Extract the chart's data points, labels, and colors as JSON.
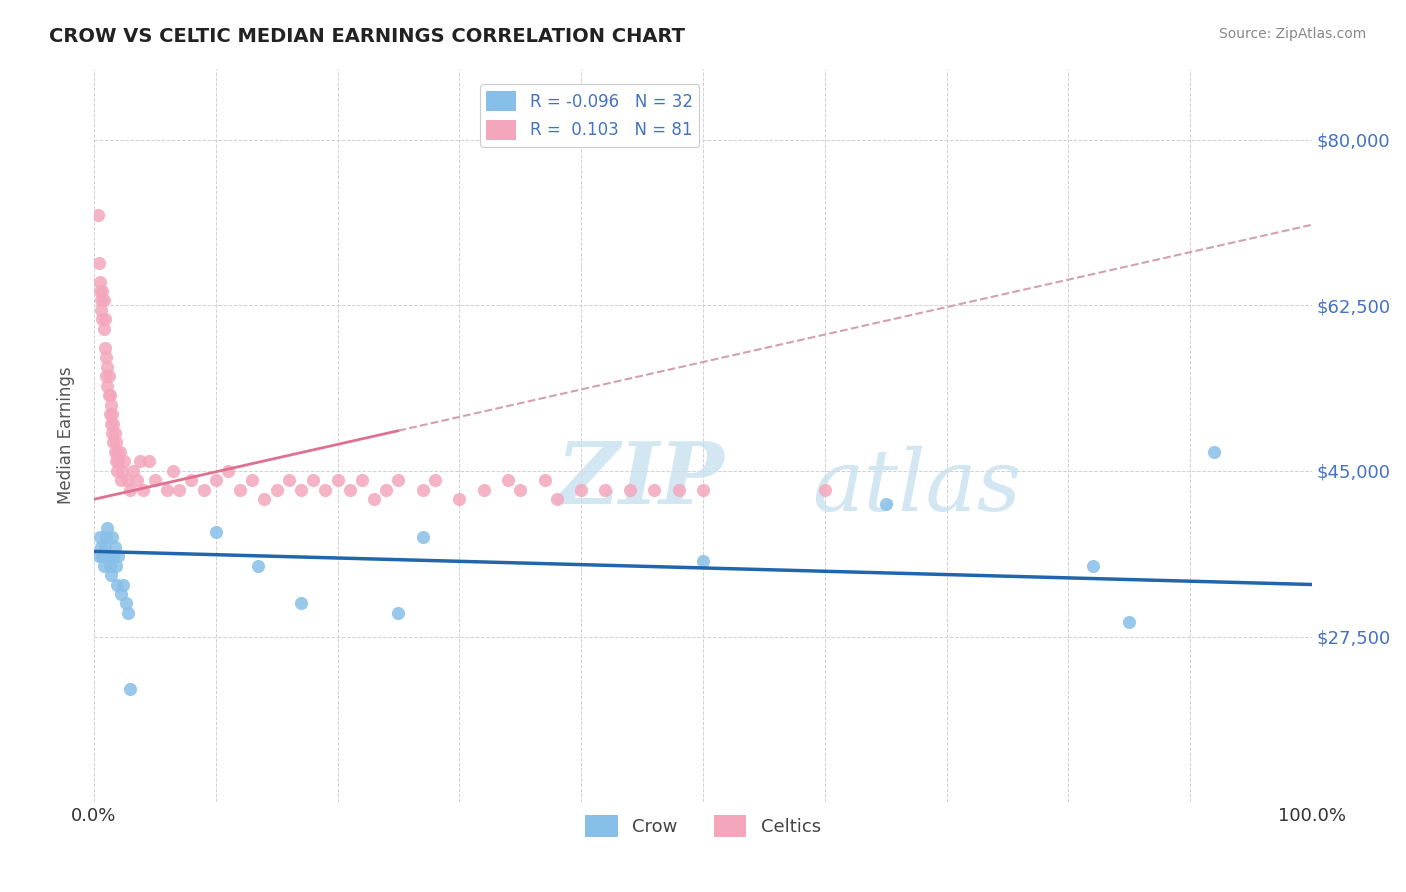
{
  "title": "CROW VS CELTIC MEDIAN EARNINGS CORRELATION CHART",
  "source": "Source: ZipAtlas.com",
  "ylabel": "Median Earnings",
  "xlim": [
    0.0,
    1.0
  ],
  "ylim": [
    10000,
    87500
  ],
  "yticks": [
    27500,
    45000,
    62500,
    80000
  ],
  "ytick_labels": [
    "$27,500",
    "$45,000",
    "$62,500",
    "$80,000"
  ],
  "crow_R": -0.096,
  "crow_N": 32,
  "celtics_R": 0.103,
  "celtics_N": 81,
  "crow_color": "#88bfe8",
  "celtics_color": "#f4a7bc",
  "crow_line_color": "#2166ac",
  "celtics_line_solid_color": "#e07090",
  "celtics_line_dash_color": "#d4a0b0",
  "watermark_zip": "ZIP",
  "watermark_atlas": "atlas",
  "crow_x": [
    0.004,
    0.005,
    0.006,
    0.007,
    0.008,
    0.009,
    0.01,
    0.011,
    0.012,
    0.013,
    0.014,
    0.015,
    0.016,
    0.017,
    0.018,
    0.019,
    0.02,
    0.022,
    0.024,
    0.026,
    0.028,
    0.03,
    0.1,
    0.135,
    0.17,
    0.25,
    0.27,
    0.5,
    0.65,
    0.82,
    0.85,
    0.92
  ],
  "crow_y": [
    36000,
    38000,
    37000,
    36000,
    35000,
    37000,
    38000,
    39000,
    36000,
    35000,
    34000,
    38000,
    36000,
    37000,
    35000,
    33000,
    36000,
    32000,
    33000,
    31000,
    30000,
    22000,
    38500,
    35000,
    31000,
    30000,
    38000,
    35500,
    41500,
    35000,
    29000,
    47000
  ],
  "celtics_x": [
    0.003,
    0.004,
    0.005,
    0.005,
    0.006,
    0.006,
    0.007,
    0.007,
    0.008,
    0.008,
    0.009,
    0.009,
    0.01,
    0.01,
    0.011,
    0.011,
    0.012,
    0.012,
    0.013,
    0.013,
    0.014,
    0.014,
    0.015,
    0.015,
    0.016,
    0.016,
    0.017,
    0.017,
    0.018,
    0.018,
    0.019,
    0.019,
    0.02,
    0.021,
    0.022,
    0.023,
    0.025,
    0.027,
    0.03,
    0.032,
    0.035,
    0.038,
    0.04,
    0.045,
    0.05,
    0.06,
    0.065,
    0.07,
    0.08,
    0.09,
    0.1,
    0.11,
    0.12,
    0.13,
    0.14,
    0.15,
    0.16,
    0.17,
    0.18,
    0.19,
    0.2,
    0.21,
    0.22,
    0.23,
    0.24,
    0.25,
    0.27,
    0.28,
    0.3,
    0.32,
    0.34,
    0.35,
    0.37,
    0.38,
    0.4,
    0.42,
    0.44,
    0.46,
    0.48,
    0.5,
    0.6
  ],
  "celtics_y": [
    72000,
    67000,
    65000,
    64000,
    63000,
    62000,
    64000,
    61000,
    60000,
    63000,
    58000,
    61000,
    55000,
    57000,
    56000,
    54000,
    53000,
    55000,
    51000,
    53000,
    50000,
    52000,
    49000,
    51000,
    48000,
    50000,
    47000,
    49000,
    46000,
    48000,
    47000,
    45000,
    46000,
    47000,
    44000,
    45000,
    46000,
    44000,
    43000,
    45000,
    44000,
    46000,
    43000,
    46000,
    44000,
    43000,
    45000,
    43000,
    44000,
    43000,
    44000,
    45000,
    43000,
    44000,
    42000,
    43000,
    44000,
    43000,
    44000,
    43000,
    44000,
    43000,
    44000,
    42000,
    43000,
    44000,
    43000,
    44000,
    42000,
    43000,
    44000,
    43000,
    44000,
    42000,
    43000,
    43000,
    43000,
    43000,
    43000,
    43000,
    43000
  ]
}
